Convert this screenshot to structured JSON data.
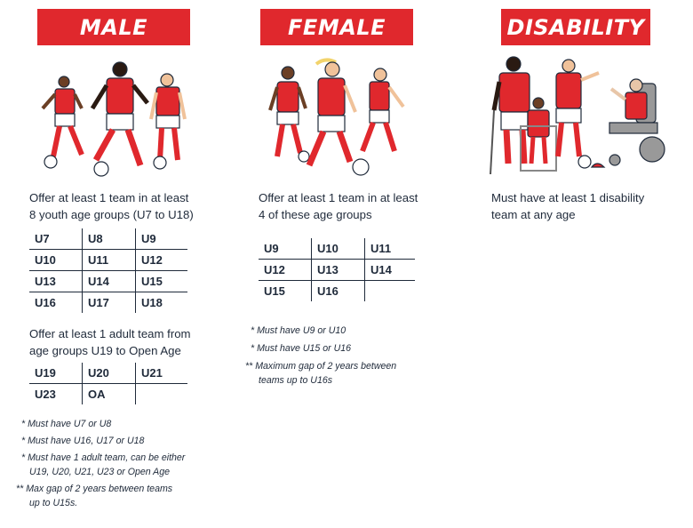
{
  "male": {
    "title": "MALE",
    "youth_requirement_line1": "Offer at least 1 team in at least",
    "youth_requirement_line2": "8 youth age groups (U7 to U18)",
    "youth_grid": [
      [
        "U7",
        "U8",
        "U9"
      ],
      [
        "U10",
        "U11",
        "U12"
      ],
      [
        "U13",
        "U14",
        "U15"
      ],
      [
        "U16",
        "U17",
        "U18"
      ]
    ],
    "adult_requirement_line1": "Offer at least 1 adult team from",
    "adult_requirement_line2": "age groups U19 to Open Age",
    "adult_grid": [
      [
        "U19",
        "U20",
        "U21"
      ],
      [
        "U23",
        "OA",
        ""
      ]
    ],
    "notes": [
      {
        "mark": "*",
        "line1": "Must have U7 or U8",
        "line2": ""
      },
      {
        "mark": "*",
        "line1": "Must have U16, U17 or U18",
        "line2": ""
      },
      {
        "mark": "*",
        "line1": "Must have 1 adult team, can be either",
        "line2": "U19, U20, U21, U23 or Open Age"
      },
      {
        "mark": "**",
        "line1": "Max gap of 2 years between teams",
        "line2": "up to U15s."
      }
    ]
  },
  "female": {
    "title": "FEMALE",
    "requirement_line1": "Offer at least 1 team in at least",
    "requirement_line2": "4 of these age groups",
    "grid": [
      [
        "U9",
        "U10",
        "U11"
      ],
      [
        "U12",
        "U13",
        "U14"
      ],
      [
        "U15",
        "U16",
        ""
      ]
    ],
    "notes": [
      {
        "mark": "*",
        "line1": "Must have U9 or U10",
        "line2": ""
      },
      {
        "mark": "*",
        "line1": "Must have U15 or U16",
        "line2": ""
      },
      {
        "mark": "**",
        "line1": "Maximum gap of 2 years between",
        "line2": "teams up to U16s"
      }
    ]
  },
  "disability": {
    "title": "DISABILITY",
    "requirement_line1": "Must have at least 1 disability",
    "requirement_line2": "team at any age"
  },
  "colors": {
    "brand_red": "#e0282d",
    "text_navy": "#1f2a3a"
  }
}
